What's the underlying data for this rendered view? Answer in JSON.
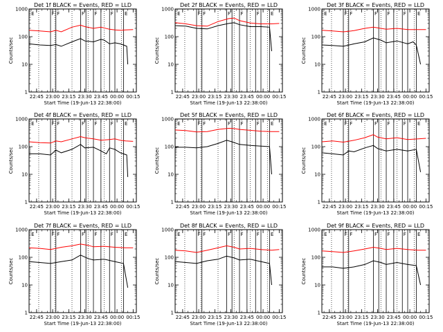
{
  "chart_data": {
    "type": "line",
    "shared": {
      "xlabel": "Start Time (19-Jun-13 22:38:00)",
      "ylabel": "Counts/sec",
      "yscale": "log",
      "ylim": [
        1,
        1000
      ],
      "yticks": [
        "1",
        "10",
        "100",
        "1000"
      ],
      "xlim_min": [
        0,
        100
      ],
      "xticks_min": [
        7,
        22,
        37,
        52,
        67,
        82,
        97
      ],
      "xtick_labels": [
        "22:45",
        "23:00",
        "23:15",
        "23:30",
        "23:45",
        "00:00",
        "00:15"
      ],
      "dotted_lines_min": [
        9,
        24,
        40,
        55,
        70,
        86
      ],
      "solid_lines_min": [
        20,
        25,
        48,
        53,
        60,
        67,
        75,
        80,
        88
      ],
      "region_markers": [
        {
          "x_min": 2,
          "label": "E"
        },
        {
          "x_min": 21,
          "label": "F"
        },
        {
          "x_min": 26,
          "label": "F"
        },
        {
          "x_min": 49,
          "label": "F"
        },
        {
          "x_min": 61,
          "label": "F"
        },
        {
          "x_min": 76,
          "label": "F"
        },
        {
          "x_min": 89,
          "label": "E"
        }
      ],
      "series_colors": {
        "events": "#000000",
        "lld": "#ff0000"
      }
    },
    "panels": [
      {
        "title": "Det 1f BLACK = Events, RED = LLD",
        "series": [
          {
            "key": "events",
            "x": [
              0,
              10,
              20,
              25,
              30,
              40,
              48,
              52,
              60,
              67,
              70,
              75,
              80,
              85,
              88,
              91,
              92
            ],
            "y": [
              55,
              50,
              48,
              52,
              45,
              65,
              85,
              70,
              65,
              80,
              75,
              55,
              60,
              55,
              50,
              45,
              10
            ]
          },
          {
            "key": "lld",
            "x": [
              0,
              10,
              20,
              25,
              30,
              40,
              48,
              52,
              60,
              67,
              75,
              80,
              85,
              90,
              97
            ],
            "y": [
              170,
              160,
              150,
              170,
              150,
              220,
              260,
              230,
              200,
              220,
              185,
              175,
              170,
              175,
              180
            ]
          }
        ]
      },
      {
        "title": "Det 2f BLACK = Events, RED = LLD",
        "series": [
          {
            "key": "events",
            "x": [
              0,
              10,
              20,
              30,
              40,
              50,
              55,
              60,
              70,
              80,
              88,
              90
            ],
            "y": [
              250,
              240,
              200,
              190,
              250,
              300,
              320,
              270,
              230,
              230,
              220,
              30
            ]
          },
          {
            "key": "lld",
            "x": [
              0,
              10,
              20,
              30,
              40,
              50,
              55,
              60,
              70,
              80,
              90,
              97
            ],
            "y": [
              320,
              290,
              250,
              240,
              350,
              450,
              470,
              380,
              310,
              290,
              290,
              300
            ]
          }
        ]
      },
      {
        "title": "Det 3f BLACK = Events, RED = LLD",
        "series": [
          {
            "key": "events",
            "x": [
              0,
              10,
              20,
              30,
              40,
              48,
              55,
              60,
              70,
              80,
              85,
              88,
              92
            ],
            "y": [
              50,
              48,
              45,
              55,
              65,
              90,
              75,
              60,
              70,
              55,
              65,
              50,
              10
            ]
          },
          {
            "key": "lld",
            "x": [
              0,
              10,
              20,
              30,
              40,
              48,
              55,
              60,
              70,
              80,
              90,
              97
            ],
            "y": [
              170,
              160,
              150,
              165,
              200,
              220,
              200,
              185,
              200,
              180,
              180,
              180
            ]
          }
        ]
      },
      {
        "title": "Det 4f BLACK = Events, RED = LLD",
        "series": [
          {
            "key": "events",
            "x": [
              0,
              10,
              20,
              25,
              30,
              40,
              48,
              52,
              60,
              67,
              72,
              75,
              80,
              85,
              91,
              92
            ],
            "y": [
              55,
              55,
              50,
              75,
              60,
              80,
              120,
              90,
              95,
              70,
              55,
              90,
              80,
              60,
              50,
              8
            ]
          },
          {
            "key": "lld",
            "x": [
              0,
              10,
              20,
              25,
              30,
              40,
              48,
              52,
              60,
              67,
              75,
              80,
              85,
              90,
              97
            ],
            "y": [
              150,
              140,
              135,
              160,
              150,
              190,
              230,
              210,
              190,
              170,
              180,
              190,
              170,
              160,
              155
            ]
          }
        ]
      },
      {
        "title": "Det 5f BLACK = Events, RED = LLD",
        "series": [
          {
            "key": "events",
            "x": [
              0,
              10,
              20,
              30,
              40,
              48,
              53,
              60,
              70,
              80,
              88,
              90
            ],
            "y": [
              95,
              95,
              90,
              100,
              130,
              170,
              150,
              120,
              110,
              105,
              100,
              10
            ]
          },
          {
            "key": "lld",
            "x": [
              0,
              10,
              20,
              30,
              40,
              50,
              55,
              60,
              70,
              80,
              90,
              97
            ],
            "y": [
              400,
              380,
              340,
              350,
              420,
              460,
              450,
              420,
              390,
              360,
              350,
              350
            ]
          }
        ]
      },
      {
        "title": "Det 6f BLACK = Events, RED = LLD",
        "series": [
          {
            "key": "events",
            "x": [
              0,
              10,
              20,
              25,
              30,
              40,
              48,
              52,
              60,
              70,
              80,
              88,
              92
            ],
            "y": [
              60,
              55,
              50,
              70,
              65,
              90,
              110,
              85,
              70,
              80,
              70,
              80,
              12
            ]
          },
          {
            "key": "lld",
            "x": [
              0,
              10,
              20,
              30,
              40,
              48,
              52,
              60,
              70,
              80,
              90,
              97
            ],
            "y": [
              150,
              160,
              145,
              170,
              210,
              270,
              220,
              190,
              210,
              180,
              190,
              200
            ]
          }
        ]
      },
      {
        "title": "Det 7f BLACK = Events, RED = LLD",
        "series": [
          {
            "key": "events",
            "x": [
              0,
              10,
              20,
              30,
              40,
              48,
              55,
              60,
              70,
              80,
              88,
              92
            ],
            "y": [
              70,
              65,
              60,
              70,
              80,
              120,
              90,
              80,
              85,
              70,
              60,
              8
            ]
          },
          {
            "key": "lld",
            "x": [
              0,
              10,
              20,
              30,
              40,
              48,
              55,
              60,
              70,
              80,
              90,
              97
            ],
            "y": [
              220,
              210,
              190,
              230,
              260,
              300,
              270,
              240,
              250,
              230,
              220,
              220
            ]
          }
        ]
      },
      {
        "title": "Det 8f BLACK = Events, RED = LLD",
        "series": [
          {
            "key": "events",
            "x": [
              0,
              10,
              20,
              30,
              40,
              48,
              55,
              60,
              70,
              80,
              88,
              90
            ],
            "y": [
              70,
              65,
              60,
              75,
              85,
              110,
              95,
              80,
              85,
              70,
              60,
              10
            ]
          },
          {
            "key": "lld",
            "x": [
              0,
              10,
              20,
              30,
              40,
              48,
              55,
              60,
              70,
              80,
              90,
              97
            ],
            "y": [
              180,
              170,
              150,
              180,
              220,
              260,
              230,
              200,
              210,
              190,
              180,
              190
            ]
          }
        ]
      },
      {
        "title": "Det 9f BLACK = Events, RED = LLD",
        "series": [
          {
            "key": "events",
            "x": [
              0,
              10,
              20,
              30,
              40,
              48,
              55,
              60,
              70,
              80,
              88,
              92
            ],
            "y": [
              45,
              45,
              40,
              45,
              55,
              75,
              65,
              55,
              65,
              55,
              50,
              10
            ]
          },
          {
            "key": "lld",
            "x": [
              0,
              10,
              20,
              30,
              40,
              48,
              55,
              60,
              70,
              80,
              90,
              97
            ],
            "y": [
              170,
              160,
              150,
              170,
              200,
              230,
              210,
              190,
              210,
              190,
              180,
              180
            ]
          }
        ]
      }
    ]
  }
}
